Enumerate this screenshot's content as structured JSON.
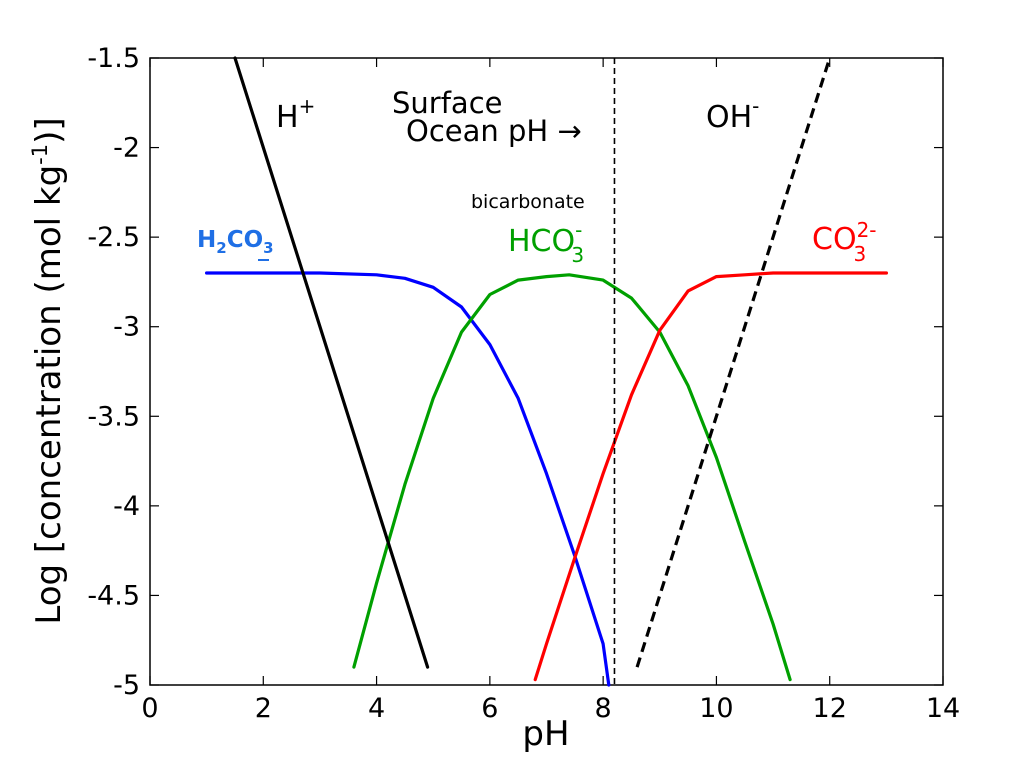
{
  "chart_data": {
    "type": "line",
    "xlabel": "pH",
    "ylabel": "Log [concentration (mol kg",
    "ylabel_sup": "-1",
    "ylabel_end": ")]",
    "xlim": [
      0,
      14
    ],
    "ylim": [
      -5,
      -1.5
    ],
    "xticks": [
      0,
      2,
      4,
      6,
      8,
      10,
      12,
      14
    ],
    "xtick_labels": [
      "0",
      "2",
      "4",
      "6",
      "8",
      "10",
      "12",
      "14"
    ],
    "yticks": [
      -1.5,
      -2,
      -2.5,
      -3,
      -3.5,
      -4,
      -4.5,
      -5
    ],
    "ytick_labels": [
      "-1.5",
      "-2",
      "-2.5",
      "-3",
      "-3.5",
      "-4",
      "-4.5",
      "-5"
    ],
    "grid": false,
    "colors": {
      "h2co3": "#0000ff",
      "hco3": "#00a000",
      "co3": "#ff0000",
      "ions": "#000000",
      "h2co3_label": "#1f6fe5"
    },
    "series": [
      {
        "key": "h2co3",
        "x": [
          1.0,
          2.0,
          3.0,
          4.0,
          4.5,
          5.0,
          5.5,
          6.0,
          6.5,
          7.0,
          7.5,
          8.0,
          8.1
        ],
        "y": [
          -2.7,
          -2.7,
          -2.7,
          -2.71,
          -2.73,
          -2.78,
          -2.89,
          -3.1,
          -3.4,
          -3.82,
          -4.28,
          -4.77,
          -5.0
        ]
      },
      {
        "key": "hco3",
        "x": [
          3.6,
          4.0,
          4.5,
          5.0,
          5.5,
          6.0,
          6.5,
          7.0,
          7.4,
          8.0,
          8.5,
          9.0,
          9.5,
          10.0,
          10.5,
          11.0,
          11.3
        ],
        "y": [
          -4.9,
          -4.43,
          -3.88,
          -3.4,
          -3.03,
          -2.82,
          -2.74,
          -2.72,
          -2.71,
          -2.74,
          -2.84,
          -3.03,
          -3.33,
          -3.73,
          -4.2,
          -4.66,
          -4.97
        ]
      },
      {
        "key": "co3",
        "x": [
          6.8,
          7.0,
          7.5,
          8.0,
          8.5,
          9.0,
          9.5,
          10.0,
          10.5,
          11.0,
          12.0,
          13.0
        ],
        "y": [
          -4.97,
          -4.77,
          -4.29,
          -3.82,
          -3.38,
          -3.02,
          -2.8,
          -2.72,
          -2.71,
          -2.7,
          -2.7,
          -2.7
        ]
      },
      {
        "key": "h_plus",
        "dashed": false,
        "x": [
          1.5,
          4.9
        ],
        "y": [
          -1.5,
          -4.9
        ]
      },
      {
        "key": "oh_minus",
        "dashed": true,
        "x": [
          8.6,
          12.0
        ],
        "y": [
          -4.9,
          -1.5
        ]
      }
    ],
    "reference_line": {
      "x": 8.2,
      "dashed": true
    },
    "annotations": {
      "h_plus": "H",
      "h_plus_sup": "+",
      "surface_line1": "Surface",
      "surface_line2": "Ocean pH →",
      "oh": "OH",
      "oh_sup": "-",
      "bicarbonate": "bicarbonate",
      "h2co3_h": "H",
      "h2co3_2": "2",
      "h2co3_co": "CO",
      "h2co3_3": "3",
      "hco3_main": "HCO",
      "hco3_sub": "3",
      "hco3_sup": "-",
      "co3_main": "CO",
      "co3_sub": "3",
      "co3_sup": "2-"
    }
  }
}
